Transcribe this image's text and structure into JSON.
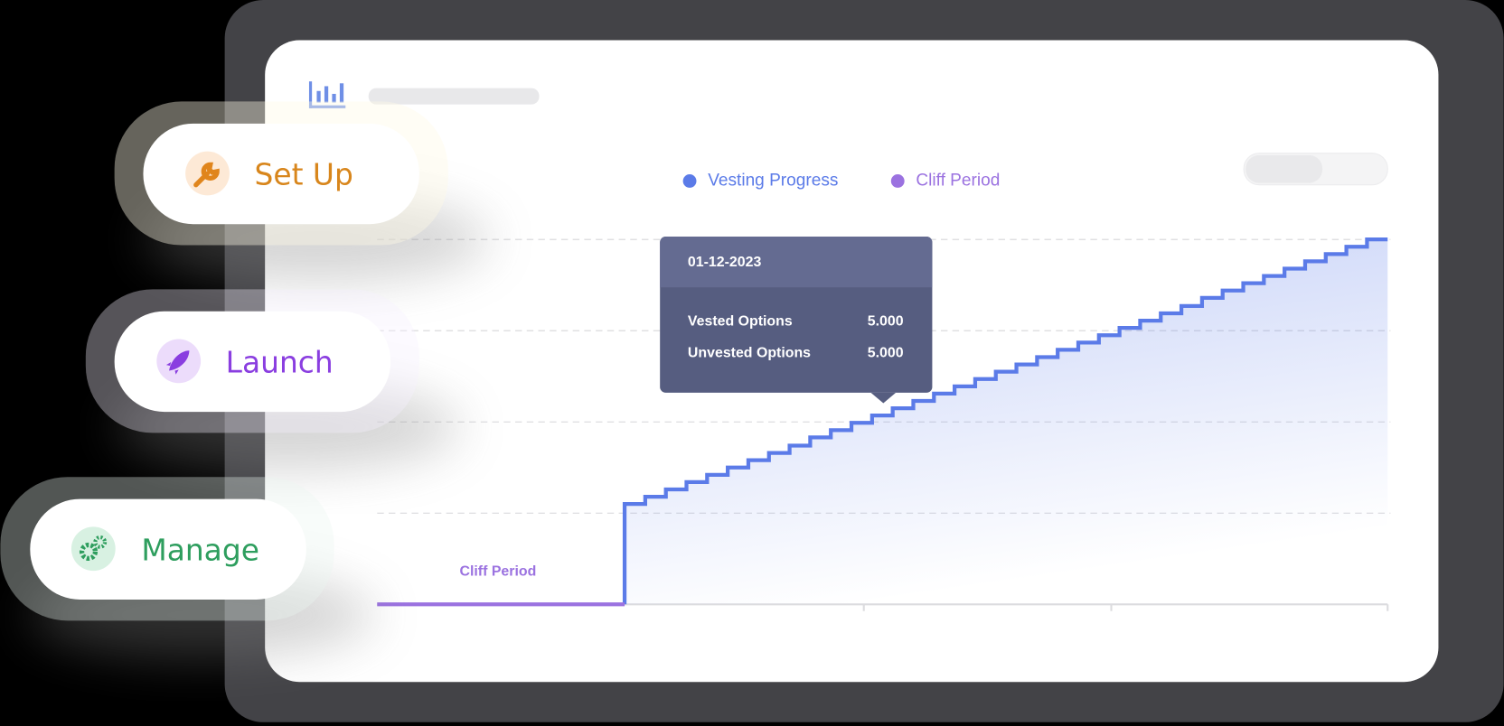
{
  "steps": [
    {
      "label": "Set Up"
    },
    {
      "label": "Launch"
    },
    {
      "label": "Manage"
    }
  ],
  "chart_data": {
    "type": "step",
    "series": [
      {
        "name": "Vesting Progress",
        "color": "#5b7be8",
        "x": [
          12,
          13,
          14,
          15,
          16,
          17,
          18,
          19,
          20,
          21,
          22,
          23,
          24,
          25,
          26,
          27,
          28,
          29,
          30,
          31,
          32,
          33,
          34,
          35,
          36,
          37,
          38,
          39,
          40,
          41,
          42,
          43,
          44,
          45,
          46,
          47,
          48
        ],
        "values": [
          1.1,
          1.18,
          1.26,
          1.34,
          1.42,
          1.5,
          1.58,
          1.66,
          1.74,
          1.83,
          1.91,
          1.99,
          2.07,
          2.15,
          2.23,
          2.31,
          2.39,
          2.47,
          2.55,
          2.63,
          2.71,
          2.79,
          2.87,
          2.95,
          3.03,
          3.11,
          3.19,
          3.27,
          3.36,
          3.44,
          3.52,
          3.6,
          3.68,
          3.76,
          3.84,
          3.92,
          4.0
        ]
      },
      {
        "name": "Cliff Period",
        "color": "#9b72e0",
        "x": [
          0,
          12
        ],
        "values": [
          0,
          0
        ]
      }
    ],
    "xlim": [
      0,
      49
    ],
    "xticks": [
      23.6,
      35.6,
      49
    ],
    "ylim": [
      0,
      4
    ],
    "yticks": [
      1,
      2,
      3,
      4
    ],
    "grid": true,
    "annotation": "Cliff Period",
    "tooltip": {
      "date": "01-12-2023",
      "rows": [
        {
          "label": "Vested Options",
          "value": "5.000"
        },
        {
          "label": "Unvested Options",
          "value": "5.000"
        }
      ]
    }
  }
}
